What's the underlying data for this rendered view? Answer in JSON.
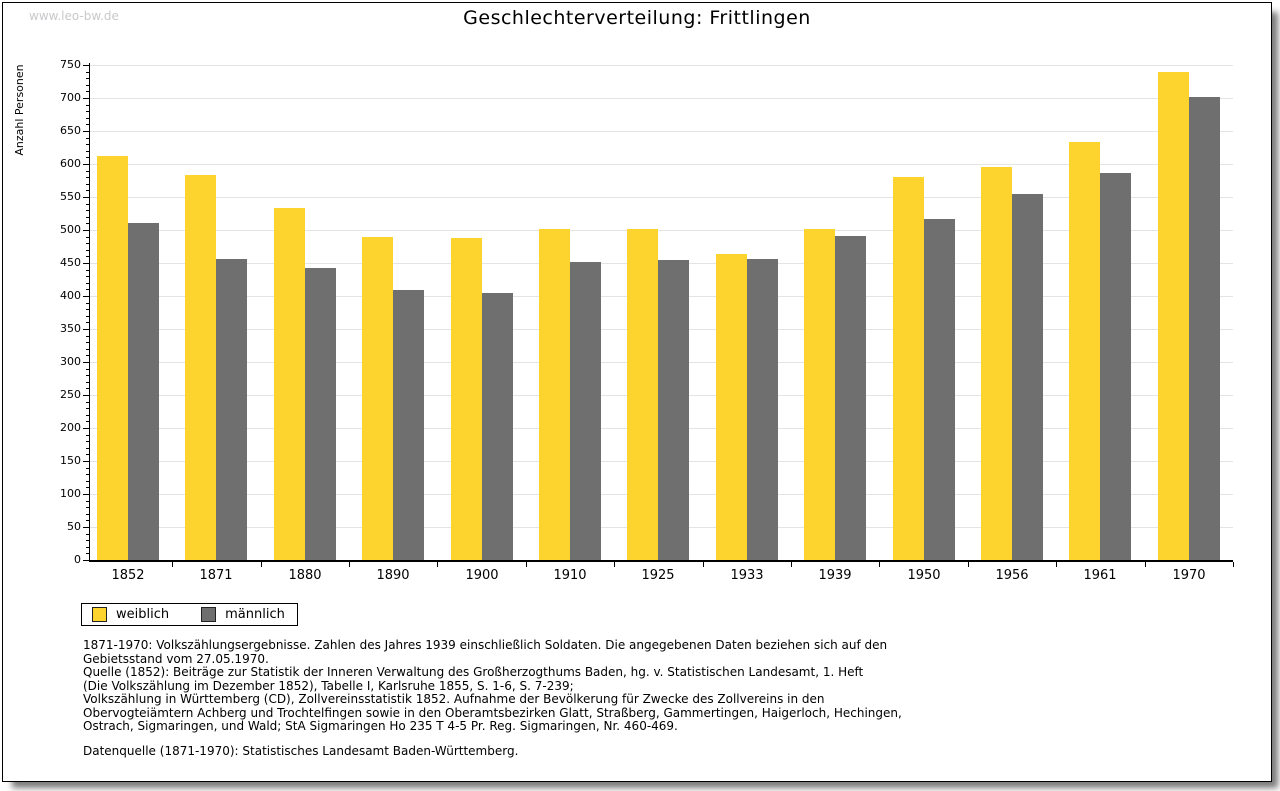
{
  "watermark": "www.leo-bw.de",
  "title": "Geschlechterverteilung: Frittlingen",
  "chart_data": {
    "type": "bar",
    "title": "Geschlechterverteilung: Frittlingen",
    "xlabel": "",
    "ylabel": "Anzahl Personen",
    "ylim": [
      0,
      750
    ],
    "ytick_major": 50,
    "ytick_minor": 10,
    "grid": true,
    "legend_position": "bottom-left",
    "categories": [
      "1852",
      "1871",
      "1880",
      "1890",
      "1900",
      "1910",
      "1925",
      "1933",
      "1939",
      "1950",
      "1956",
      "1961",
      "1970"
    ],
    "series": [
      {
        "name": "weiblich",
        "color": "#fcd42d",
        "values": [
          612,
          583,
          533,
          490,
          488,
          502,
          501,
          464,
          501,
          581,
          596,
          634,
          740
        ]
      },
      {
        "name": "männlich",
        "color": "#6f6f6f",
        "values": [
          510,
          456,
          443,
          409,
          405,
          451,
          455,
          456,
          491,
          517,
          554,
          586,
          701
        ]
      }
    ]
  },
  "colors": {
    "weiblich": "#fcd42d",
    "maennlich": "#6f6f6f",
    "gridline": "#e4e4e4",
    "watermark": "#c9c9cd"
  },
  "footer": {
    "lines": [
      "1871-1970: Volkszählungsergebnisse. Zahlen des Jahres 1939 einschließlich Soldaten. Die angegebenen Daten beziehen sich auf den",
      "Gebietsstand vom 27.05.1970.",
      "Quelle (1852): Beiträge zur Statistik der Inneren Verwaltung des Großherzogthums Baden, hg. v. Statistischen Landesamt, 1. Heft",
      "(Die Volkszählung im Dezember 1852), Tabelle I, Karlsruhe 1855, S. 1-6, S. 7-239;",
      "Volkszählung in Württemberg (CD), Zollvereinsstatistik 1852. Aufnahme der Bevölkerung für Zwecke des Zollvereins in den",
      "Obervogteiämtern Achberg und Trochtelfingen sowie in den Oberamtsbezirken Glatt, Straßberg, Gammertingen, Haigerloch, Hechingen,",
      "Ostrach, Sigmaringen, und Wald; StA Sigmaringen Ho 235 T 4-5 Pr. Reg. Sigmaringen, Nr. 460-469."
    ],
    "datasource": "Datenquelle (1871-1970): Statistisches Landesamt Baden-Württemberg."
  }
}
